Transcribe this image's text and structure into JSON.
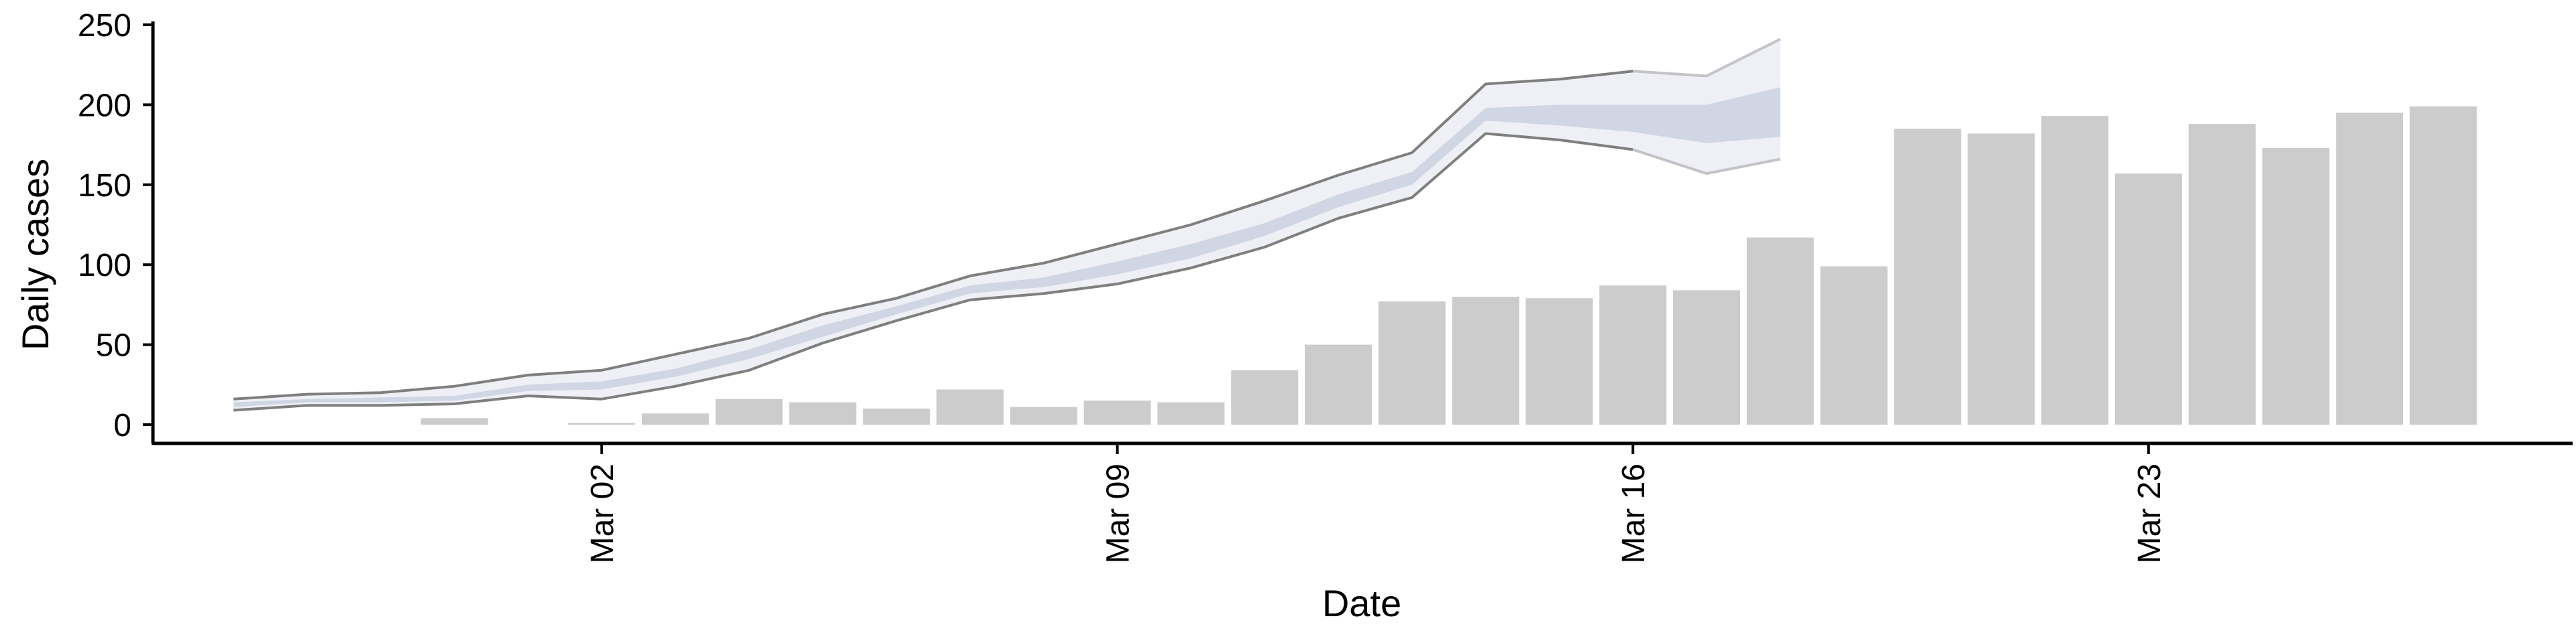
{
  "chart_data": {
    "type": "bar",
    "title": "",
    "xlabel": "Date",
    "ylabel": "Daily cases",
    "ylim": [
      0,
      250
    ],
    "y_ticks": [
      0,
      50,
      100,
      150,
      200,
      250
    ],
    "x_ticks": [
      {
        "date": "2020-03-02",
        "label": "Mar 02"
      },
      {
        "date": "2020-03-09",
        "label": "Mar 09"
      },
      {
        "date": "2020-03-16",
        "label": "Mar 16"
      },
      {
        "date": "2020-03-23",
        "label": "Mar 23"
      }
    ],
    "grid": false,
    "colors": {
      "bars": "#cccccc",
      "band_outer": "#eef0f5",
      "band_inner": "#d0d6e4",
      "band_edge": "#7f7f7f",
      "axis": "#000000"
    },
    "series": [
      {
        "kind": "bar",
        "x": [
          "2020-02-28",
          "2020-02-29",
          "2020-03-01",
          "2020-03-02",
          "2020-03-03",
          "2020-03-04",
          "2020-03-05",
          "2020-03-06",
          "2020-03-07",
          "2020-03-08",
          "2020-03-09",
          "2020-03-10",
          "2020-03-11",
          "2020-03-12",
          "2020-03-13",
          "2020-03-14",
          "2020-03-15",
          "2020-03-16",
          "2020-03-17",
          "2020-03-18",
          "2020-03-19",
          "2020-03-20",
          "2020-03-21",
          "2020-03-22",
          "2020-03-23",
          "2020-03-24",
          "2020-03-25",
          "2020-03-26",
          "2020-03-27",
          "2020-03-28"
        ],
        "values": [
          0,
          4,
          0,
          1,
          7,
          16,
          14,
          10,
          22,
          11,
          15,
          14,
          34,
          50,
          77,
          80,
          79,
          87,
          84,
          117,
          99,
          185,
          182,
          193,
          157,
          188,
          173,
          195,
          199,
          0
        ]
      },
      {
        "kind": "interval",
        "x": [
          "2020-02-26",
          "2020-02-27",
          "2020-02-28",
          "2020-02-29",
          "2020-03-01",
          "2020-03-02",
          "2020-03-03",
          "2020-03-04",
          "2020-03-05",
          "2020-03-06",
          "2020-03-07",
          "2020-03-08",
          "2020-03-09",
          "2020-03-10",
          "2020-03-11",
          "2020-03-12",
          "2020-03-13",
          "2020-03-14",
          "2020-03-15",
          "2020-03-16",
          "2020-03-17",
          "2020-03-18",
          "2020-03-19"
        ],
        "outer_low": [
          9,
          12,
          12,
          13,
          18,
          16,
          24,
          34,
          51,
          65,
          78,
          82,
          88,
          98,
          111,
          129,
          142,
          182,
          178,
          172,
          157,
          166,
          null
        ],
        "outer_high": [
          16,
          19,
          20,
          24,
          31,
          34,
          44,
          54,
          69,
          79,
          93,
          101,
          113,
          125,
          140,
          156,
          170,
          213,
          216,
          221,
          218,
          241,
          null
        ],
        "inner_low": [
          11,
          14,
          14,
          15,
          21,
          22,
          30,
          41,
          55,
          69,
          82,
          86,
          94,
          104,
          118,
          136,
          150,
          190,
          187,
          183,
          176,
          180,
          null
        ],
        "inner_high": [
          14,
          16,
          17,
          18,
          25,
          27,
          35,
          47,
          62,
          74,
          87,
          92,
          102,
          113,
          126,
          144,
          158,
          198,
          200,
          200,
          200,
          211,
          null
        ]
      }
    ]
  }
}
